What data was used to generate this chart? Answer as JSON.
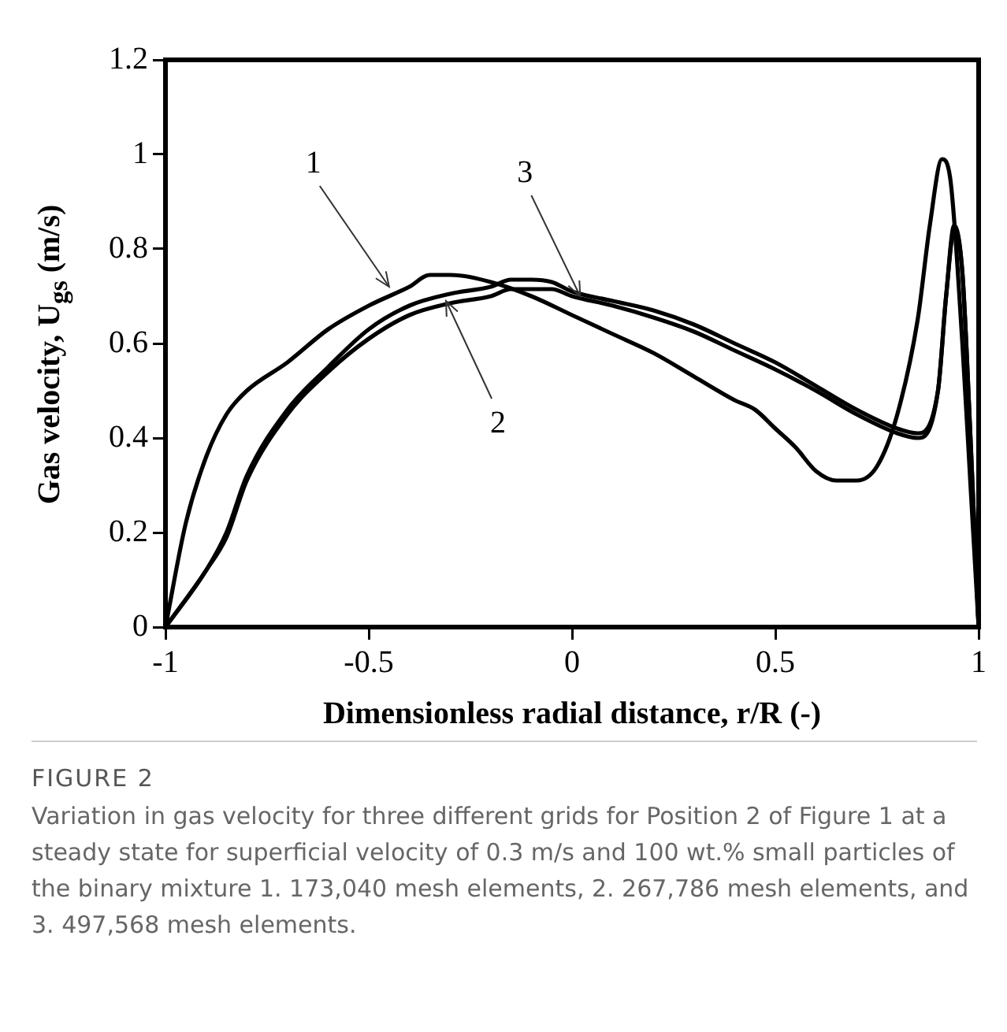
{
  "chart_data": {
    "type": "line",
    "xlabel": "Dimensionless radial distance, r/R (-)",
    "ylabel": "Gas velocity, U$_{gs}$ (m/s)",
    "xlim": [
      -1,
      1
    ],
    "xticks": [
      -1,
      -0.5,
      0,
      0.5,
      1
    ],
    "ylim": [
      0,
      1.2
    ],
    "yticks": [
      0,
      0.2,
      0.4,
      0.6,
      0.8,
      1,
      1.2
    ],
    "grid": false,
    "legend": false,
    "marker": "none",
    "line_style": "solid",
    "series": [
      {
        "color": "#000000",
        "x": [
          -1,
          -0.95,
          -0.9,
          -0.85,
          -0.8,
          -0.7,
          -0.6,
          -0.5,
          -0.4,
          -0.35,
          -0.3,
          -0.2,
          -0.1,
          0,
          0.1,
          0.2,
          0.3,
          0.4,
          0.45,
          0.5,
          0.55,
          0.6,
          0.65,
          0.7,
          0.75,
          0.8,
          0.85,
          0.88,
          0.91,
          0.93,
          0.96,
          0.98,
          1
        ],
        "values": [
          0,
          0.22,
          0.36,
          0.45,
          0.5,
          0.56,
          0.63,
          0.68,
          0.72,
          0.745,
          0.745,
          0.73,
          0.7,
          0.66,
          0.62,
          0.58,
          0.53,
          0.48,
          0.46,
          0.42,
          0.38,
          0.33,
          0.31,
          0.31,
          0.34,
          0.45,
          0.65,
          0.85,
          0.99,
          0.95,
          0.6,
          0.3,
          0
        ]
      },
      {
        "color": "#000000",
        "x": [
          -1,
          -0.9,
          -0.85,
          -0.8,
          -0.7,
          -0.6,
          -0.5,
          -0.4,
          -0.3,
          -0.2,
          -0.15,
          -0.1,
          -0.05,
          0,
          0.1,
          0.2,
          0.3,
          0.4,
          0.5,
          0.6,
          0.7,
          0.8,
          0.85,
          0.9,
          0.92,
          0.94,
          0.96,
          0.98,
          1
        ],
        "values": [
          0,
          0.12,
          0.19,
          0.31,
          0.45,
          0.54,
          0.61,
          0.66,
          0.685,
          0.7,
          0.715,
          0.715,
          0.715,
          0.7,
          0.68,
          0.655,
          0.625,
          0.585,
          0.545,
          0.5,
          0.45,
          0.41,
          0.4,
          0.5,
          0.7,
          0.84,
          0.75,
          0.4,
          0
        ]
      },
      {
        "color": "#000000",
        "x": [
          -1,
          -0.9,
          -0.85,
          -0.8,
          -0.7,
          -0.6,
          -0.5,
          -0.4,
          -0.3,
          -0.2,
          -0.15,
          -0.1,
          -0.05,
          0,
          0.1,
          0.2,
          0.3,
          0.4,
          0.5,
          0.6,
          0.7,
          0.8,
          0.85,
          0.9,
          0.92,
          0.94,
          0.96,
          0.98,
          1
        ],
        "values": [
          0,
          0.12,
          0.2,
          0.32,
          0.46,
          0.55,
          0.63,
          0.68,
          0.705,
          0.72,
          0.735,
          0.735,
          0.73,
          0.71,
          0.69,
          0.67,
          0.64,
          0.6,
          0.56,
          0.51,
          0.46,
          0.42,
          0.41,
          0.5,
          0.7,
          0.85,
          0.75,
          0.4,
          0
        ]
      }
    ],
    "annotations": [
      {
        "text": "1",
        "x": -0.45,
        "y": 0.72
      },
      {
        "text": "2",
        "x": -0.31,
        "y": 0.69
      },
      {
        "text": "3",
        "x": 0.02,
        "y": 0.7
      },
      "FIGURE 2",
      "Variation in gas velocity for three different grids for Position 2 of Figure 1 at a steady state for superficial velocity of 0.3 m/s and 100 wt.% small particles of the binary mixture 1. 173,040 mesh elements, 2. 267,786 mesh elements, and 3. 497,568 mesh elements."
    ]
  }
}
